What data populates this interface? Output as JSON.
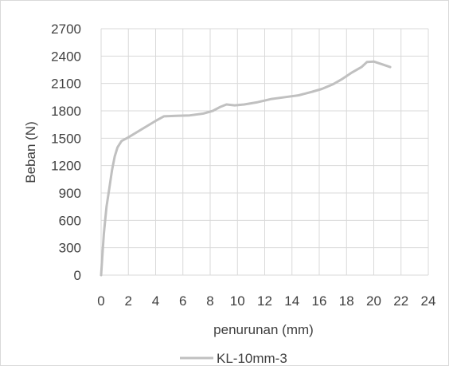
{
  "chart_data": {
    "type": "line",
    "title": "",
    "xlabel": "penurunan (mm)",
    "ylabel": "Beban (N)",
    "xlim": [
      0,
      24
    ],
    "ylim": [
      0,
      2700
    ],
    "x_ticks": [
      "0",
      "2",
      "4",
      "6",
      "8",
      "10",
      "12",
      "14",
      "16",
      "18",
      "20",
      "22",
      "24"
    ],
    "y_ticks": [
      "0",
      "300",
      "600",
      "900",
      "1200",
      "1500",
      "1800",
      "2100",
      "2400",
      "2700"
    ],
    "grid": true,
    "legend_position": "bottom",
    "series": [
      {
        "name": "KL-10mm-3",
        "color": "#c0c0c0",
        "x": [
          0,
          0.2,
          0.4,
          0.6,
          0.8,
          1.0,
          1.2,
          1.5,
          2.0,
          3.0,
          4.0,
          4.6,
          5.5,
          6.5,
          7.5,
          8.2,
          8.7,
          9.2,
          9.8,
          10.5,
          11.5,
          12.5,
          13.5,
          14.5,
          15.5,
          16.2,
          17.0,
          17.7,
          18.4,
          19.1,
          19.5,
          20.0,
          20.6,
          21.2
        ],
        "y": [
          0,
          450,
          750,
          950,
          1150,
          1300,
          1400,
          1470,
          1510,
          1600,
          1690,
          1740,
          1745,
          1750,
          1770,
          1800,
          1840,
          1870,
          1860,
          1870,
          1895,
          1930,
          1950,
          1970,
          2010,
          2040,
          2090,
          2150,
          2220,
          2280,
          2335,
          2340,
          2310,
          2280
        ]
      }
    ]
  }
}
